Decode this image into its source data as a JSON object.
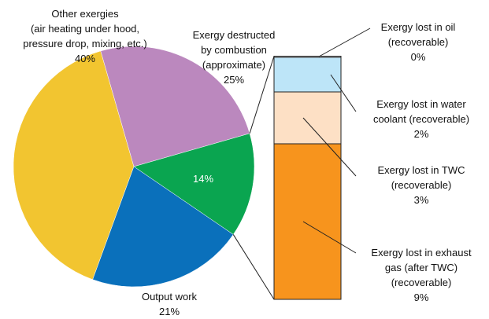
{
  "chart_data": [
    {
      "type": "pie",
      "categories": [
        "Other exergies\n(air heating under hood,\npressure drop, mixing, etc.)",
        "Exergy destructed\nby combustion\n(approximate)",
        null,
        "Output work"
      ],
      "values": [
        40,
        25,
        14,
        21
      ],
      "value_labels": [
        "40%",
        "25%",
        "14%",
        "21%"
      ],
      "colors": [
        "#f2c530",
        "#bb88be",
        "#0aa550",
        "#0a70bb"
      ]
    },
    {
      "type": "bar",
      "stacked": true,
      "categories": [
        "Exergy lost in oil\n(recoverable)",
        "Exergy lost in water\ncoolant (recoverable)",
        "Exergy lost in TWC\n(recoverable)",
        "Exergy lost in exhaust\ngas (after TWC)\n(recoverable)"
      ],
      "values": [
        0,
        2,
        3,
        9
      ],
      "value_labels": [
        "0%",
        "2%",
        "3%",
        "9%"
      ],
      "colors": [
        "#7fb3d5",
        "#bde5f8",
        "#fde0c5",
        "#f7941d"
      ]
    }
  ]
}
